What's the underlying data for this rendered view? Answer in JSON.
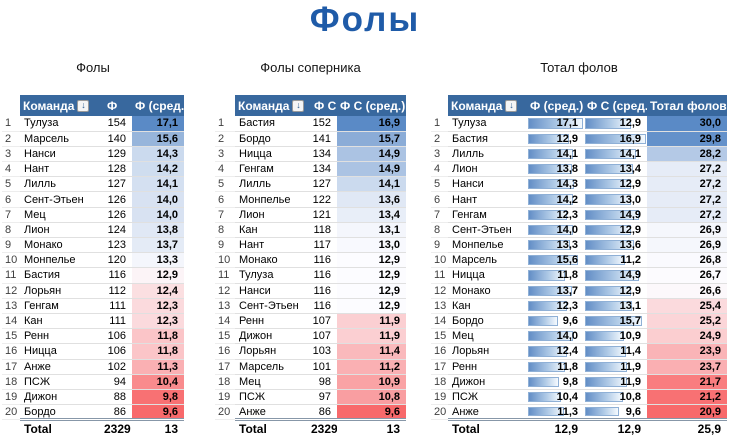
{
  "title": "Фолы",
  "colors": {
    "header_bg": "#38689E",
    "title": "#1F5BA8",
    "scale_low_red": "#F8696B",
    "scale_mid_white": "#FCFCFF",
    "scale_high_blue": "#5A8AC6",
    "databar_fill": "#638EC6",
    "databar_border": "#8FB0D6"
  },
  "sort_icon_glyph": "↓",
  "tables": [
    {
      "subtitle": "Фолы",
      "columns": [
        "Команда",
        "Ф",
        "Ф (сред.)"
      ],
      "formats": [
        "plain",
        "scale"
      ],
      "total_label": "Total",
      "totals": [
        "2329",
        "13"
      ],
      "rows": [
        [
          "1",
          "Тулуза",
          "154",
          "17,1"
        ],
        [
          "2",
          "Марсель",
          "140",
          "15,6"
        ],
        [
          "3",
          "Нанси",
          "129",
          "14,3"
        ],
        [
          "4",
          "Нант",
          "128",
          "14,2"
        ],
        [
          "5",
          "Лилль",
          "127",
          "14,1"
        ],
        [
          "6",
          "Сент-Этьен",
          "126",
          "14,0"
        ],
        [
          "7",
          "Мец",
          "126",
          "14,0"
        ],
        [
          "8",
          "Лион",
          "124",
          "13,8"
        ],
        [
          "9",
          "Монако",
          "123",
          "13,7"
        ],
        [
          "10",
          "Монпелье",
          "120",
          "13,3"
        ],
        [
          "11",
          "Бастия",
          "116",
          "12,9"
        ],
        [
          "12",
          "Лорьян",
          "112",
          "12,4"
        ],
        [
          "13",
          "Генгам",
          "111",
          "12,3"
        ],
        [
          "14",
          "Кан",
          "111",
          "12,3"
        ],
        [
          "15",
          "Ренн",
          "106",
          "11,8"
        ],
        [
          "16",
          "Ницца",
          "106",
          "11,8"
        ],
        [
          "17",
          "Анже",
          "102",
          "11,3"
        ],
        [
          "18",
          "ПСЖ",
          "94",
          "10,4"
        ],
        [
          "19",
          "Дижон",
          "88",
          "9,8"
        ],
        [
          "20",
          "Бордо",
          "86",
          "9,6"
        ]
      ]
    },
    {
      "subtitle": "Фолы соперника",
      "columns": [
        "Команда",
        "Ф С",
        "Ф С (сред.)"
      ],
      "formats": [
        "plain",
        "scale"
      ],
      "total_label": "Total",
      "totals": [
        "2329",
        "13"
      ],
      "rows": [
        [
          "1",
          "Бастия",
          "152",
          "16,9"
        ],
        [
          "2",
          "Бордо",
          "141",
          "15,7"
        ],
        [
          "3",
          "Ницца",
          "134",
          "14,9"
        ],
        [
          "4",
          "Генгам",
          "134",
          "14,9"
        ],
        [
          "5",
          "Лилль",
          "127",
          "14,1"
        ],
        [
          "6",
          "Монпелье",
          "122",
          "13,6"
        ],
        [
          "7",
          "Лион",
          "121",
          "13,4"
        ],
        [
          "8",
          "Кан",
          "118",
          "13,1"
        ],
        [
          "9",
          "Нант",
          "117",
          "13,0"
        ],
        [
          "10",
          "Монако",
          "116",
          "12,9"
        ],
        [
          "11",
          "Тулуза",
          "116",
          "12,9"
        ],
        [
          "12",
          "Нанси",
          "116",
          "12,9"
        ],
        [
          "13",
          "Сент-Этьен",
          "116",
          "12,9"
        ],
        [
          "14",
          "Ренн",
          "107",
          "11,9"
        ],
        [
          "15",
          "Дижон",
          "107",
          "11,9"
        ],
        [
          "16",
          "Лорьян",
          "103",
          "11,4"
        ],
        [
          "17",
          "Марсель",
          "101",
          "11,2"
        ],
        [
          "18",
          "Мец",
          "98",
          "10,9"
        ],
        [
          "19",
          "ПСЖ",
          "97",
          "10,8"
        ],
        [
          "20",
          "Анже",
          "86",
          "9,6"
        ]
      ]
    },
    {
      "subtitle": "Тотал фолов",
      "columns": [
        "Команда",
        "Ф (сред.)",
        "Ф С (сред.)",
        "Тотал фолов"
      ],
      "formats": [
        "bar",
        "bar",
        "scale"
      ],
      "total_label": "Total",
      "totals": [
        "12,9",
        "12,9",
        "25,9"
      ],
      "rows": [
        [
          "1",
          "Тулуза",
          "17,1",
          "12,9",
          "30,0"
        ],
        [
          "2",
          "Бастия",
          "12,9",
          "16,9",
          "29,8"
        ],
        [
          "3",
          "Лилль",
          "14,1",
          "14,1",
          "28,2"
        ],
        [
          "4",
          "Лион",
          "13,8",
          "13,4",
          "27,2"
        ],
        [
          "5",
          "Нанси",
          "14,3",
          "12,9",
          "27,2"
        ],
        [
          "6",
          "Нант",
          "14,2",
          "13,0",
          "27,2"
        ],
        [
          "7",
          "Генгам",
          "12,3",
          "14,9",
          "27,2"
        ],
        [
          "8",
          "Сент-Этьен",
          "14,0",
          "12,9",
          "26,9"
        ],
        [
          "9",
          "Монпелье",
          "13,3",
          "13,6",
          "26,9"
        ],
        [
          "10",
          "Марсель",
          "15,6",
          "11,2",
          "26,8"
        ],
        [
          "11",
          "Ницца",
          "11,8",
          "14,9",
          "26,7"
        ],
        [
          "12",
          "Монако",
          "13,7",
          "12,9",
          "26,6"
        ],
        [
          "13",
          "Кан",
          "12,3",
          "13,1",
          "25,4"
        ],
        [
          "14",
          "Бордо",
          "9,6",
          "15,7",
          "25,2"
        ],
        [
          "15",
          "Мец",
          "14,0",
          "10,9",
          "24,9"
        ],
        [
          "16",
          "Лорьян",
          "12,4",
          "11,4",
          "23,9"
        ],
        [
          "17",
          "Ренн",
          "11,8",
          "11,9",
          "23,7"
        ],
        [
          "18",
          "Дижон",
          "9,8",
          "11,9",
          "21,7"
        ],
        [
          "19",
          "ПСЖ",
          "10,4",
          "10,8",
          "21,2"
        ],
        [
          "20",
          "Анже",
          "11,3",
          "9,6",
          "20,9"
        ]
      ]
    }
  ]
}
